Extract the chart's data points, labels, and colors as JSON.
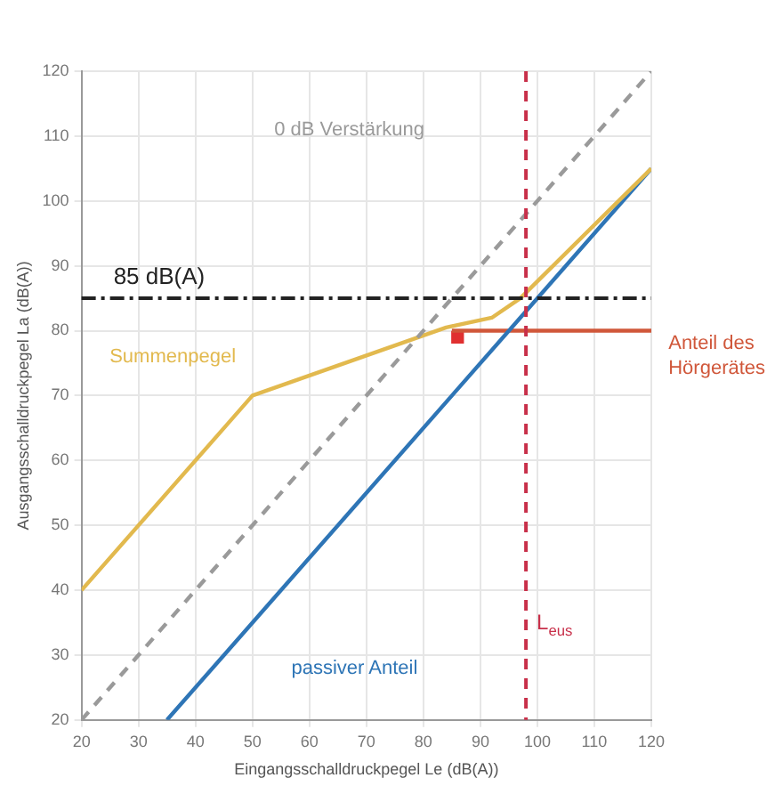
{
  "chart_data": {
    "type": "line",
    "xlabel": "Eingangsschalldruckpegel Le (dB(A))",
    "ylabel": "Ausgangsschalldruckpegel La (dB(A))",
    "xlim": [
      20,
      120
    ],
    "ylim": [
      20,
      120
    ],
    "xticks": [
      20,
      30,
      40,
      50,
      60,
      70,
      80,
      90,
      100,
      110,
      120
    ],
    "yticks": [
      20,
      30,
      40,
      50,
      60,
      70,
      80,
      90,
      100,
      110,
      120
    ],
    "grid": true,
    "legend": false,
    "marker": "none",
    "series": [
      {
        "name": "0 dB Verstärkung",
        "color": "#9a9a9a",
        "line_style": "dashed",
        "x": [
          20,
          120
        ],
        "values": [
          20,
          120
        ]
      },
      {
        "name": "Summenpegel",
        "color": "#e2b94e",
        "x": [
          20,
          50,
          84,
          92,
          97,
          120
        ],
        "values": [
          40,
          70,
          80.5,
          82,
          85,
          105
        ]
      },
      {
        "name": "passiver Anteil",
        "color": "#2e75b6",
        "x": [
          35,
          97,
          120
        ],
        "values": [
          20,
          82,
          105
        ]
      },
      {
        "name": "Anteil des Hörgerätes",
        "color": "#d0573a",
        "x": [
          85,
          120
        ],
        "values": [
          80,
          80
        ]
      },
      {
        "type": "scatter",
        "color": "#e03030",
        "marker": "square",
        "x": [
          86
        ],
        "values": [
          79
        ]
      }
    ],
    "ref_lines": [
      {
        "axis": "y",
        "value": 85,
        "label": "85 dB(A)",
        "color": "#222222",
        "line_style": "dashdot"
      },
      {
        "axis": "x",
        "value": 98,
        "label": "L$_{eus}$",
        "color": "#c8304a",
        "line_style": "dashed"
      }
    ]
  }
}
